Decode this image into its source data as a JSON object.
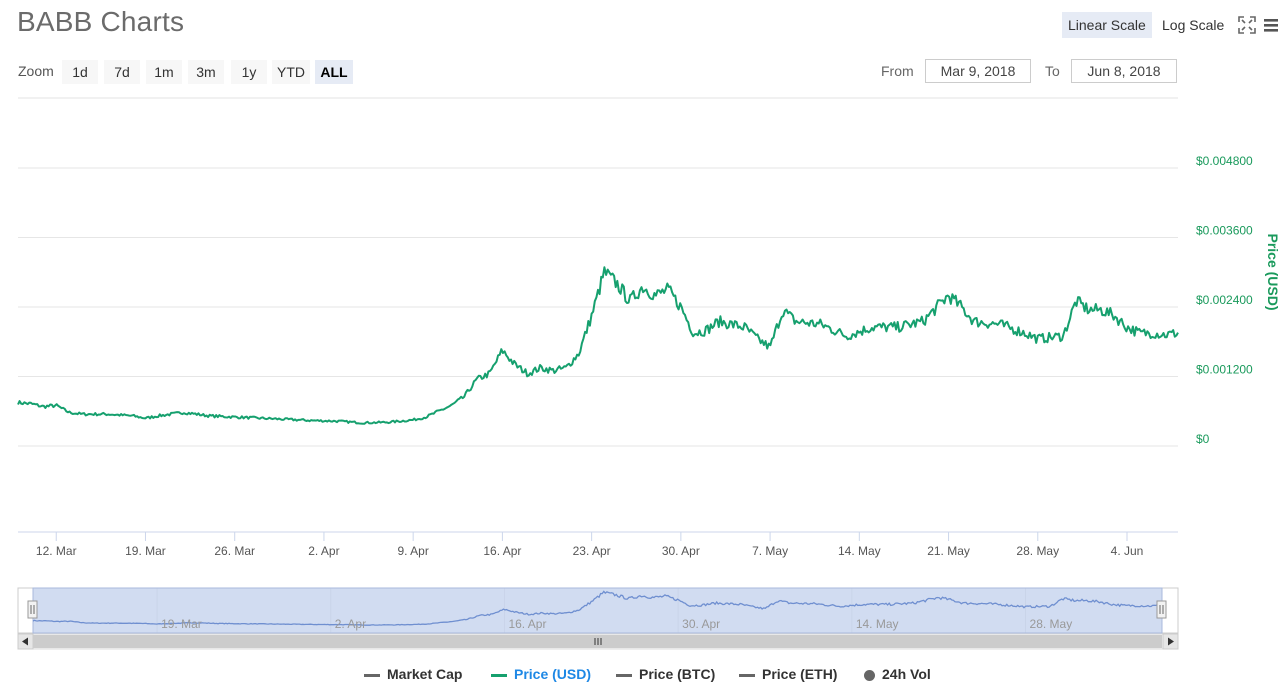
{
  "header": {
    "title": "BABB Charts",
    "linear_scale": "Linear Scale",
    "log_scale": "Log Scale"
  },
  "toolbar": {
    "zoom_label": "Zoom",
    "zoom_buttons": [
      "1d",
      "7d",
      "1m",
      "3m",
      "1y",
      "YTD",
      "ALL"
    ],
    "active_zoom": "ALL",
    "from_label": "From",
    "from_value": "Mar 9, 2018",
    "to_label": "To",
    "to_value": "Jun 8, 2018"
  },
  "legend": {
    "items": [
      "Market Cap",
      "Price (USD)",
      "Price (BTC)",
      "Price (ETH)",
      "24h Vol"
    ],
    "active": "Price (USD)"
  },
  "colors": {
    "price_line": "#16a06e",
    "axis_text": "#1a9a5c",
    "navigator_fill": "#c9d6ee",
    "navigator_line": "#6f8fd0"
  },
  "chart_data": {
    "type": "line",
    "title": "",
    "ylabel": "Price (USD)",
    "ylim": [
      0,
      0.0048
    ],
    "y_ticks": [
      0,
      0.0012,
      0.0024,
      0.0036,
      0.0048
    ],
    "y_tick_labels": [
      "$0",
      "$0.001200",
      "$0.002400",
      "$0.003600",
      "$0.004800"
    ],
    "x_range": [
      "2018-03-09",
      "2018-06-08"
    ],
    "x_tick_labels": [
      "12. Mar",
      "19. Mar",
      "26. Mar",
      "2. Apr",
      "9. Apr",
      "16. Apr",
      "23. Apr",
      "30. Apr",
      "7. May",
      "14. May",
      "21. May",
      "28. May",
      "4. Jun"
    ],
    "navigator_labels": [
      "19. Mar",
      "2. Apr",
      "16. Apr",
      "30. Apr",
      "14. May",
      "28. May"
    ],
    "grid": true,
    "legend_position": "bottom",
    "series": [
      {
        "name": "Price (USD)",
        "points": [
          [
            "2018-03-09",
            0.00075
          ],
          [
            "2018-03-10",
            0.00073
          ],
          [
            "2018-03-11",
            0.00068
          ],
          [
            "2018-03-12",
            0.0007
          ],
          [
            "2018-03-13",
            0.00058
          ],
          [
            "2018-03-14",
            0.00055
          ],
          [
            "2018-03-16",
            0.00055
          ],
          [
            "2018-03-18",
            0.00052
          ],
          [
            "2018-03-19",
            0.00048
          ],
          [
            "2018-03-20",
            0.00052
          ],
          [
            "2018-03-22",
            0.00058
          ],
          [
            "2018-03-24",
            0.00052
          ],
          [
            "2018-03-26",
            0.0005
          ],
          [
            "2018-03-28",
            0.00048
          ],
          [
            "2018-03-30",
            0.00046
          ],
          [
            "2018-04-01",
            0.00044
          ],
          [
            "2018-04-03",
            0.00043
          ],
          [
            "2018-04-05",
            0.0004
          ],
          [
            "2018-04-07",
            0.00041
          ],
          [
            "2018-04-09",
            0.00045
          ],
          [
            "2018-04-10",
            0.0005
          ],
          [
            "2018-04-11",
            0.0006
          ],
          [
            "2018-04-12",
            0.0007
          ],
          [
            "2018-04-13",
            0.00085
          ],
          [
            "2018-04-14",
            0.00115
          ],
          [
            "2018-04-15",
            0.00125
          ],
          [
            "2018-04-16",
            0.00165
          ],
          [
            "2018-04-17",
            0.0014
          ],
          [
            "2018-04-18",
            0.00125
          ],
          [
            "2018-04-19",
            0.00135
          ],
          [
            "2018-04-20",
            0.0013
          ],
          [
            "2018-04-21",
            0.00135
          ],
          [
            "2018-04-22",
            0.0016
          ],
          [
            "2018-04-23",
            0.00225
          ],
          [
            "2018-04-24",
            0.003
          ],
          [
            "2018-04-25",
            0.0028
          ],
          [
            "2018-04-26",
            0.0025
          ],
          [
            "2018-04-27",
            0.00275
          ],
          [
            "2018-04-28",
            0.0026
          ],
          [
            "2018-04-29",
            0.0027
          ],
          [
            "2018-04-30",
            0.0024
          ],
          [
            "2018-05-01",
            0.00195
          ],
          [
            "2018-05-02",
            0.002
          ],
          [
            "2018-05-03",
            0.00215
          ],
          [
            "2018-05-04",
            0.0021
          ],
          [
            "2018-05-05",
            0.00205
          ],
          [
            "2018-05-06",
            0.00185
          ],
          [
            "2018-05-07",
            0.0017
          ],
          [
            "2018-05-08",
            0.00235
          ],
          [
            "2018-05-09",
            0.00215
          ],
          [
            "2018-05-11",
            0.0021
          ],
          [
            "2018-05-13",
            0.0019
          ],
          [
            "2018-05-15",
            0.00205
          ],
          [
            "2018-05-17",
            0.00205
          ],
          [
            "2018-05-19",
            0.00215
          ],
          [
            "2018-05-21",
            0.0026
          ],
          [
            "2018-05-22",
            0.0024
          ],
          [
            "2018-05-23",
            0.00215
          ],
          [
            "2018-05-25",
            0.0021
          ],
          [
            "2018-05-27",
            0.00195
          ],
          [
            "2018-05-28",
            0.00185
          ],
          [
            "2018-05-30",
            0.0019
          ],
          [
            "2018-05-31",
            0.0025
          ],
          [
            "2018-06-01",
            0.00235
          ],
          [
            "2018-06-02",
            0.00235
          ],
          [
            "2018-06-03",
            0.00225
          ],
          [
            "2018-06-04",
            0.00205
          ],
          [
            "2018-06-05",
            0.00195
          ],
          [
            "2018-06-06",
            0.00195
          ],
          [
            "2018-06-07",
            0.00192
          ],
          [
            "2018-06-08",
            0.00195
          ]
        ]
      }
    ]
  }
}
